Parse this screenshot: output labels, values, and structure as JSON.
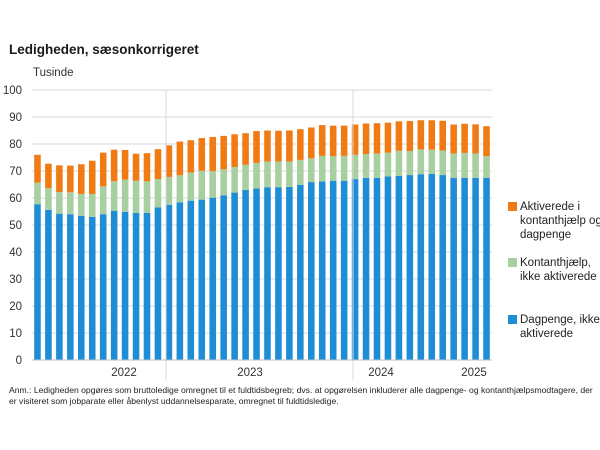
{
  "title": "Ledigheden, sæsonkorrigeret",
  "note": "Anm.: Ledigheden opgøres som bruttoledige omregnet til et fuldtidsbegreb; dvs. at opgørelsen inkluderer alle dagpenge- og kontanthjælpsmodtagere, der er visiteret som jobparate eller åbenlyst uddannelsesparate, omregnet til fuldtidsledige.",
  "chart_data": {
    "type": "bar",
    "stacked": true,
    "ylabel": "Tusinde",
    "ylim": [
      0,
      100
    ],
    "yticks": [
      0,
      10,
      20,
      30,
      40,
      50,
      60,
      70,
      80,
      90,
      100
    ],
    "grid": true,
    "legend_position": "right",
    "year_labels": [
      "2022",
      "2023",
      "2024",
      "2025"
    ],
    "series": [
      {
        "name": "Dagpenge, ikke aktiverede",
        "color": "#1f8dd6",
        "values": [
          57.7,
          55.6,
          54.2,
          54.0,
          53.4,
          53.0,
          54.0,
          55.3,
          54.9,
          54.5,
          54.5,
          56.5,
          57.5,
          58.4,
          59.0,
          59.4,
          60.1,
          61.0,
          62.0,
          63.0,
          63.5,
          64.0,
          64.0,
          64.1,
          64.9,
          65.9,
          66.1,
          66.4,
          66.4,
          67.0,
          67.4,
          67.4,
          68.0,
          68.2,
          68.5,
          68.8,
          68.9,
          68.5,
          67.4,
          67.5,
          67.5,
          67.5
        ]
      },
      {
        "name": "Kontanthjælp, ikke aktiverede",
        "color": "#a8cfa0",
        "values": [
          8.0,
          8.1,
          8.0,
          8.1,
          8.1,
          8.5,
          10.3,
          10.9,
          11.9,
          11.9,
          11.7,
          10.5,
          10.3,
          10.0,
          10.4,
          10.7,
          9.9,
          9.6,
          9.5,
          9.3,
          9.5,
          9.5,
          9.5,
          9.4,
          9.2,
          8.8,
          9.5,
          9.1,
          9.2,
          9.0,
          8.9,
          9.1,
          8.8,
          9.3,
          8.9,
          9.2,
          9.0,
          9.1,
          9.1,
          9.2,
          9.0,
          8.0
        ]
      },
      {
        "name": "Aktiverede i kontanthjælp og dagpenge",
        "color": "#f07b14",
        "values": [
          10.3,
          9.0,
          9.9,
          9.9,
          11.0,
          12.3,
          12.5,
          11.7,
          11.0,
          10.0,
          10.4,
          11.1,
          11.7,
          12.5,
          12.0,
          12.1,
          12.6,
          12.4,
          12.1,
          11.7,
          11.8,
          11.5,
          11.4,
          11.5,
          11.4,
          11.4,
          11.4,
          11.3,
          11.2,
          11.2,
          11.3,
          11.2,
          11.1,
          10.9,
          11.1,
          10.8,
          10.9,
          11.0,
          10.7,
          10.8,
          10.8,
          11.1
        ]
      }
    ]
  }
}
